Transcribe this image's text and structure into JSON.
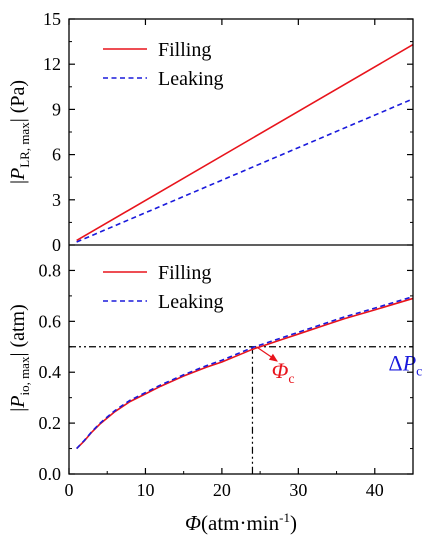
{
  "chart_data": [
    {
      "type": "line",
      "panel": "top",
      "ylabel_prefix": "|",
      "ylabel_italic": "P",
      "ylabel_sub": "LR, max",
      "ylabel_suffix": "| (Pa)",
      "ylim": [
        0,
        15
      ],
      "yticks": [
        0,
        3,
        6,
        9,
        12,
        15
      ],
      "xlim": [
        0,
        45
      ],
      "legend_position": "top-left",
      "series": [
        {
          "name": "Filling",
          "color": "#e8141c",
          "style": "solid",
          "x": [
            1,
            45
          ],
          "y": [
            0.3,
            13.3
          ]
        },
        {
          "name": "Leaking",
          "color": "#1a1adc",
          "style": "dashed",
          "x": [
            1,
            45
          ],
          "y": [
            0.2,
            9.7
          ]
        }
      ]
    },
    {
      "type": "line",
      "panel": "bottom",
      "xlabel_italic": "Φ",
      "xlabel_rest": "(atm·min",
      "xlabel_sup": "-1",
      "xlabel_close": ")",
      "ylabel_prefix": "|",
      "ylabel_italic": "P",
      "ylabel_sub": "io, max",
      "ylabel_suffix": "| (atm)",
      "xlim": [
        0,
        45
      ],
      "xticks": [
        0,
        10,
        20,
        30,
        40
      ],
      "ylim": [
        0,
        0.9
      ],
      "yticks": [
        "0.0",
        "0.2",
        "0.4",
        "0.6",
        "0.8"
      ],
      "legend_position": "top-left",
      "series": [
        {
          "name": "Filling",
          "color": "#e8141c",
          "style": "solid",
          "x": [
            1,
            2,
            3,
            4,
            5,
            6,
            7,
            8,
            10,
            12,
            15,
            18,
            20,
            22,
            24,
            26,
            28,
            30,
            33,
            36,
            40,
            45
          ],
          "y": [
            0.1,
            0.13,
            0.165,
            0.195,
            0.22,
            0.245,
            0.265,
            0.285,
            0.315,
            0.345,
            0.385,
            0.42,
            0.44,
            0.465,
            0.49,
            0.51,
            0.53,
            0.55,
            0.58,
            0.61,
            0.645,
            0.69
          ]
        },
        {
          "name": "Leaking",
          "color": "#1a1adc",
          "style": "dashed",
          "x": [
            1,
            2,
            3,
            4,
            5,
            6,
            7,
            8,
            10,
            12,
            15,
            18,
            20,
            22,
            24,
            26,
            28,
            30,
            33,
            36,
            40,
            45
          ],
          "y": [
            0.1,
            0.132,
            0.167,
            0.198,
            0.224,
            0.249,
            0.27,
            0.29,
            0.32,
            0.35,
            0.39,
            0.426,
            0.447,
            0.472,
            0.497,
            0.517,
            0.537,
            0.557,
            0.587,
            0.617,
            0.652,
            0.697
          ]
        }
      ],
      "reference_lines": {
        "horizontal_y": 0.5,
        "vertical_x": 24,
        "color": "#000000"
      },
      "annotations": [
        {
          "italic": "Φ",
          "sub": "c",
          "color": "#e8141c",
          "x": 26.5,
          "y": 0.4
        },
        {
          "italic": "P",
          "prefix": "Δ",
          "sub": "c",
          "color": "#1a1adc",
          "x": 41.8,
          "y": 0.43
        }
      ]
    }
  ]
}
